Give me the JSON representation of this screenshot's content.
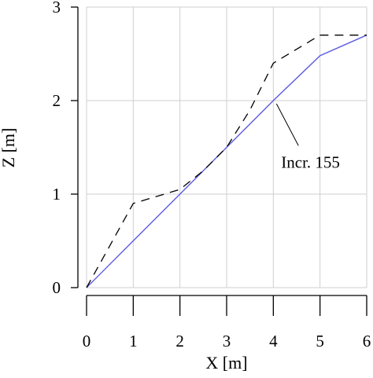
{
  "chart_data": {
    "type": "line",
    "title": "",
    "xlabel": "X [m]",
    "ylabel": "Z [m]",
    "xlim": [
      0,
      6
    ],
    "ylim": [
      0,
      3
    ],
    "xticks": [
      0,
      1,
      2,
      3,
      4,
      5,
      6
    ],
    "yticks": [
      0,
      1,
      2,
      3
    ],
    "grid": true,
    "series": [
      {
        "line_style": "solid",
        "color": "#5b5be0",
        "x": [
          0,
          1,
          2,
          3,
          4,
          5,
          6
        ],
        "y": [
          0,
          0.5,
          1.0,
          1.5,
          2.0,
          2.48,
          2.7
        ]
      },
      {
        "line_style": "dashed",
        "color": "#000000",
        "x": [
          0,
          1,
          2,
          2.5,
          3,
          3.5,
          4,
          4.5,
          5,
          6
        ],
        "y": [
          0,
          0.9,
          1.05,
          1.25,
          1.5,
          1.9,
          2.4,
          2.55,
          2.7,
          2.7
        ]
      }
    ],
    "annotations": [
      {
        "text": "Incr. 155",
        "points_to": {
          "x": 4.0,
          "y": 2.0
        },
        "text_at": {
          "x": 4.1,
          "y": 1.35
        }
      }
    ]
  }
}
